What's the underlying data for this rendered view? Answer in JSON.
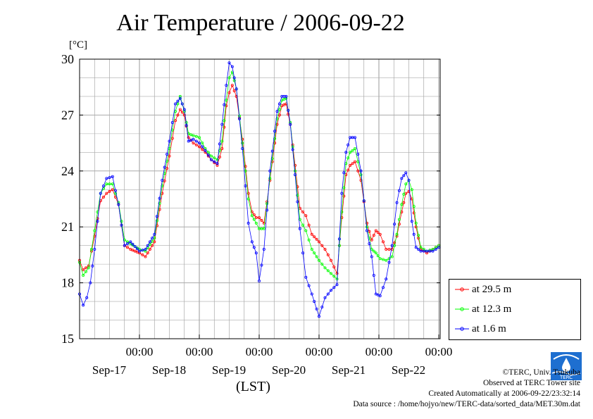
{
  "title": "Air Temperature / 2006-09-22",
  "unit": "[°C]",
  "xlabel": "(LST)",
  "credits": {
    "copyright": "©TERC, Univ. Tsukuba",
    "observed": "Observed at TERC Tower site",
    "created": "Created Automatically at 2006-09-22/23:32:14",
    "source": "Data source : /home/hojyo/new/TERC-data/sorted_data/MET.30m.dat"
  },
  "logo_text": "TERC",
  "chart_data": {
    "type": "line",
    "title": "Air Temperature / 2006-09-22",
    "ylabel": "[°C]",
    "xlabel": "(LST)",
    "ylim": [
      15,
      30
    ],
    "yticks": [
      15,
      18,
      21,
      24,
      27,
      30
    ],
    "xlim_days": [
      0,
      6
    ],
    "xticks": [
      {
        "day": 1,
        "time": "00:00",
        "date": "Sep-17"
      },
      {
        "day": 2,
        "time": "00:00",
        "date": "Sep-18"
      },
      {
        "day": 3,
        "time": "00:00",
        "date": "Sep-19"
      },
      {
        "day": 4,
        "time": "00:00",
        "date": "Sep-20"
      },
      {
        "day": 5,
        "time": "00:00",
        "date": "Sep-21"
      },
      {
        "day": 6,
        "time": "00:00",
        "date": "Sep-22"
      }
    ],
    "grid": true,
    "legend_position": "right",
    "series": [
      {
        "name": "at 29.5 m",
        "color": "#ff0000",
        "x": [
          0,
          0.06,
          0.15,
          0.25,
          0.35,
          0.45,
          0.55,
          0.65,
          0.75,
          0.85,
          1.0,
          1.1,
          1.25,
          1.38,
          1.5,
          1.6,
          1.68,
          1.75,
          1.82,
          1.9,
          2.0,
          2.1,
          2.2,
          2.3,
          2.38,
          2.45,
          2.5,
          2.55,
          2.62,
          2.72,
          2.82,
          2.88,
          2.95,
          3.0,
          3.08,
          3.18,
          3.3,
          3.38,
          3.45,
          3.52,
          3.6,
          3.68,
          3.78,
          3.88,
          4.0,
          4.1,
          4.2,
          4.3,
          4.38,
          4.45,
          4.52,
          4.6,
          4.7,
          4.8,
          4.88,
          4.95,
          5.02,
          5.12,
          5.22,
          5.3,
          5.38,
          5.45,
          5.5,
          5.55,
          5.62,
          5.7,
          5.8,
          5.9,
          6.0,
          6.1,
          6.2,
          6.3,
          6.4,
          6.5,
          6.58,
          6.66,
          6.75,
          6.85,
          6.95,
          7.06
        ],
        "values": [
          19.2,
          18.7,
          18.9,
          20.5,
          22.4,
          22.8,
          23.0,
          22.2,
          20.0,
          19.8,
          19.6,
          19.4,
          20.2,
          22.8,
          24.8,
          26.7,
          27.3,
          27.0,
          25.8,
          25.5,
          25.3,
          25.0,
          24.6,
          24.3,
          25.2,
          27.5,
          28.2,
          28.6,
          28.0,
          25.7,
          22.8,
          21.8,
          21.5,
          21.5,
          21.2,
          23.5,
          26.5,
          27.5,
          27.6,
          26.5,
          24.3,
          22.0,
          21.6,
          20.6,
          20.2,
          19.8,
          19.2,
          18.5,
          21.5,
          23.8,
          24.3,
          24.5,
          23.5,
          21.2,
          20.3,
          20.8,
          20.6,
          19.8,
          19.8,
          20.5,
          21.8,
          22.8,
          22.9,
          22.5,
          21.0,
          19.8,
          19.6,
          19.8,
          20.0,
          20.2,
          20.0,
          20.0,
          20.0,
          20.0,
          20.0,
          20.0,
          20.0,
          20.0,
          20.0,
          20.0
        ]
      },
      {
        "name": "at 12.3 m",
        "color": "#00ff00",
        "x": [
          0,
          0.06,
          0.15,
          0.25,
          0.35,
          0.45,
          0.55,
          0.65,
          0.75,
          0.85,
          1.0,
          1.1,
          1.25,
          1.38,
          1.5,
          1.6,
          1.68,
          1.75,
          1.82,
          1.9,
          2.0,
          2.1,
          2.2,
          2.3,
          2.38,
          2.45,
          2.5,
          2.55,
          2.62,
          2.72,
          2.82,
          2.88,
          2.95,
          3.0,
          3.08,
          3.18,
          3.3,
          3.38,
          3.45,
          3.52,
          3.6,
          3.68,
          3.78,
          3.88,
          4.0,
          4.1,
          4.2,
          4.3,
          4.38,
          4.45,
          4.52,
          4.6,
          4.7,
          4.8,
          4.88,
          4.95,
          5.02,
          5.12,
          5.22,
          5.3,
          5.38,
          5.45,
          5.5,
          5.55,
          5.62,
          5.7,
          5.8,
          5.9,
          6.0,
          6.1,
          6.2,
          6.3,
          6.4,
          6.5,
          6.58,
          6.66,
          6.75,
          6.85,
          6.95,
          7.06
        ],
        "values": [
          19.1,
          18.4,
          18.8,
          20.8,
          22.8,
          23.3,
          23.3,
          22.3,
          20.3,
          20.1,
          19.8,
          19.7,
          20.4,
          23.2,
          25.2,
          27.2,
          28.0,
          27.2,
          26.0,
          25.9,
          25.8,
          25.2,
          24.8,
          24.6,
          25.6,
          27.8,
          29.0,
          29.3,
          28.4,
          25.5,
          22.5,
          21.6,
          21.2,
          20.9,
          20.9,
          23.6,
          26.8,
          27.8,
          27.9,
          26.6,
          24.0,
          21.4,
          20.8,
          19.8,
          19.2,
          18.8,
          18.5,
          18.2,
          21.8,
          24.4,
          25.0,
          25.2,
          23.8,
          21.0,
          19.8,
          19.6,
          19.3,
          19.2,
          19.4,
          20.6,
          22.2,
          23.3,
          23.5,
          23.0,
          21.2,
          19.9,
          19.7,
          19.8,
          20.0,
          20.0,
          20.0,
          20.0,
          20.0,
          20.0,
          20.0,
          20.0,
          20.0,
          20.0,
          20.0,
          20.0
        ]
      },
      {
        "name": "at 1.6 m",
        "color": "#0000ff",
        "x": [
          0,
          0.06,
          0.12,
          0.18,
          0.25,
          0.35,
          0.45,
          0.55,
          0.65,
          0.75,
          0.85,
          1.0,
          1.1,
          1.25,
          1.38,
          1.5,
          1.6,
          1.68,
          1.75,
          1.82,
          1.9,
          2.0,
          2.1,
          2.2,
          2.3,
          2.38,
          2.45,
          2.5,
          2.55,
          2.62,
          2.72,
          2.82,
          2.88,
          2.95,
          3.0,
          3.08,
          3.18,
          3.3,
          3.38,
          3.45,
          3.52,
          3.6,
          3.68,
          3.78,
          3.88,
          4.0,
          4.1,
          4.2,
          4.3,
          4.38,
          4.45,
          4.52,
          4.6,
          4.7,
          4.8,
          4.88,
          4.95,
          5.02,
          5.12,
          5.22,
          5.3,
          5.38,
          5.45,
          5.5,
          5.55,
          5.62,
          5.7,
          5.8,
          5.9,
          6.0
        ],
        "values": [
          17.4,
          16.8,
          17.2,
          18.0,
          19.8,
          22.8,
          23.6,
          23.7,
          22.2,
          20.0,
          20.2,
          19.7,
          19.8,
          20.6,
          23.5,
          25.6,
          27.6,
          27.9,
          27.3,
          25.6,
          25.7,
          25.5,
          25.1,
          24.6,
          24.4,
          26.5,
          28.6,
          29.8,
          29.6,
          28.4,
          25.2,
          21.2,
          20.2,
          19.6,
          18.1,
          19.8,
          24.0,
          27.2,
          28.0,
          28.0,
          26.5,
          23.8,
          20.9,
          18.3,
          17.4,
          16.2,
          17.2,
          17.6,
          17.9,
          22.8,
          25.0,
          25.8,
          25.8,
          24.0,
          20.8,
          19.4,
          17.4,
          17.3,
          18.2,
          20.0,
          22.3,
          23.6,
          23.9,
          23.5,
          21.3,
          19.9,
          19.7,
          19.7,
          19.7,
          19.9
        ]
      }
    ]
  }
}
